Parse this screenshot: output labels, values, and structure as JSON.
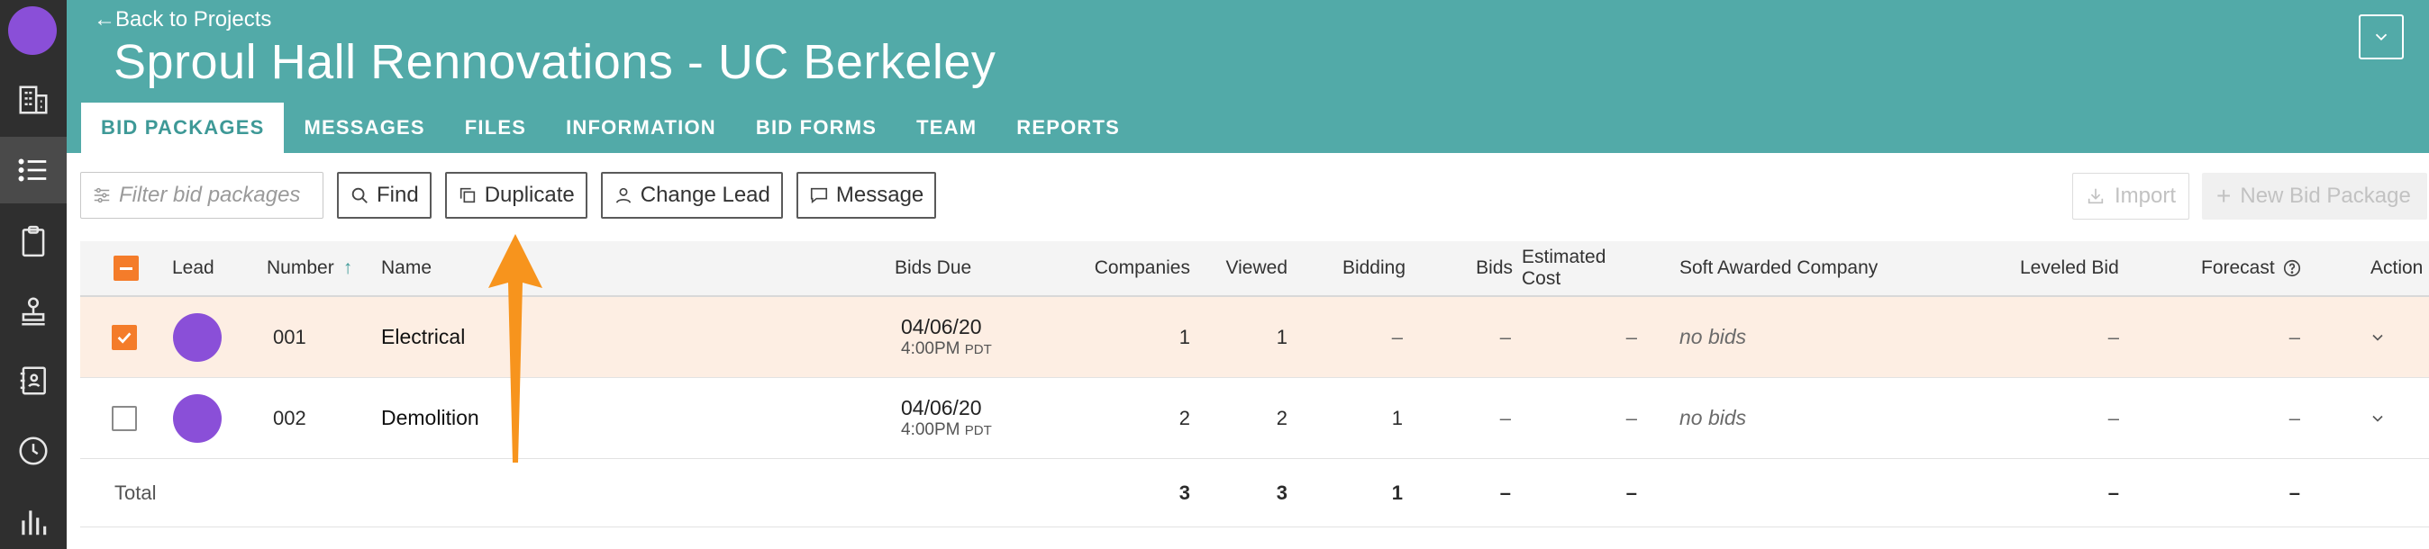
{
  "nav": {
    "back_label": "Back to Projects",
    "project_title": "Sproul Hall Rennovations - UC Berkeley"
  },
  "tabs": [
    {
      "label": "BID PACKAGES",
      "active": true
    },
    {
      "label": "MESSAGES"
    },
    {
      "label": "FILES"
    },
    {
      "label": "INFORMATION"
    },
    {
      "label": "BID FORMS"
    },
    {
      "label": "TEAM"
    },
    {
      "label": "REPORTS"
    }
  ],
  "sidebar": {
    "icons": [
      "building-icon",
      "list-icon",
      "clipboard-icon",
      "stamp-icon",
      "address-book-icon",
      "clock-icon",
      "bar-chart-icon"
    ],
    "active": "list-icon"
  },
  "toolbar": {
    "filter_placeholder": "Filter bid packages",
    "find_label": "Find",
    "duplicate_label": "Duplicate",
    "change_lead_label": "Change Lead",
    "message_label": "Message",
    "import_label": "Import",
    "new_package_label": "New Bid Package"
  },
  "table": {
    "headers": {
      "lead": "Lead",
      "number": "Number",
      "name": "Name",
      "bids_due": "Bids Due",
      "companies": "Companies",
      "viewed": "Viewed",
      "bidding": "Bidding",
      "bids": "Bids",
      "estimated_cost": "Estimated Cost",
      "soft_awarded": "Soft Awarded Company",
      "leveled_bid": "Leveled Bid",
      "forecast": "Forecast",
      "action": "Action"
    },
    "rows": [
      {
        "selected": true,
        "number": "001",
        "name": "Electrical",
        "due_date": "04/06/20",
        "due_time": "4:00PM",
        "due_tz": "PDT",
        "companies": "1",
        "viewed": "1",
        "bidding": "–",
        "bids": "–",
        "estimated_cost": "–",
        "soft_awarded": "no bids",
        "leveled_bid": "–",
        "forecast": "–"
      },
      {
        "selected": false,
        "number": "002",
        "name": "Demolition",
        "due_date": "04/06/20",
        "due_time": "4:00PM",
        "due_tz": "PDT",
        "companies": "2",
        "viewed": "2",
        "bidding": "1",
        "bids": "–",
        "estimated_cost": "–",
        "soft_awarded": "no bids",
        "leveled_bid": "–",
        "forecast": "–"
      }
    ],
    "total": {
      "label": "Total",
      "companies": "3",
      "viewed": "3",
      "bidding": "1",
      "bids": "–",
      "estimated_cost": "–",
      "leveled_bid": "–",
      "forecast": "–"
    }
  },
  "colors": {
    "header_bg": "#52aaa8",
    "sidebar_bg": "#2f2f2f",
    "accent_orange": "#f47c2a",
    "avatar_purple": "#8a4fd8",
    "annotation_arrow": "#f7941d"
  }
}
